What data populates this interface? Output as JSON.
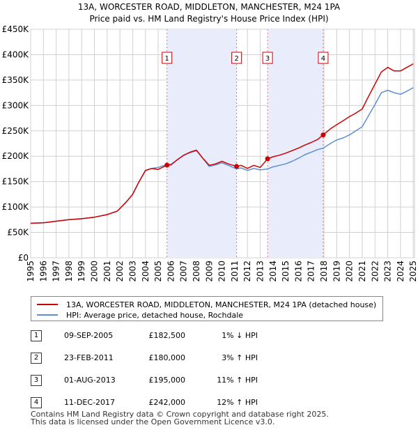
{
  "chart_data": {
    "type": "line",
    "title": "13A, WORCESTER ROAD, MIDDLETON, MANCHESTER, M24 1PA",
    "subtitle": "Price paid vs. HM Land Registry's House Price Index (HPI)",
    "y_tick_labels": [
      "£0",
      "£50K",
      "£100K",
      "£150K",
      "£200K",
      "£250K",
      "£300K",
      "£350K",
      "£400K",
      "£450K"
    ],
    "y_ticks": [
      0,
      50000,
      100000,
      150000,
      200000,
      250000,
      300000,
      350000,
      400000,
      450000
    ],
    "ylim": [
      0,
      450000
    ],
    "x_ticks": [
      "1995",
      "1996",
      "1997",
      "1998",
      "1999",
      "2000",
      "2001",
      "2002",
      "2003",
      "2004",
      "2005",
      "2006",
      "2007",
      "2008",
      "2009",
      "2010",
      "2011",
      "2012",
      "2013",
      "2014",
      "2015",
      "2016",
      "2017",
      "2018",
      "2019",
      "2020",
      "2021",
      "2022",
      "2023",
      "2024",
      "2025"
    ],
    "xlim": [
      1995.0,
      2025.1
    ],
    "grid": true,
    "series": [
      {
        "name": "13A, WORCESTER ROAD, MIDDLETON, MANCHESTER, M24 1PA (detached house)",
        "color": "#cc0000",
        "x": [
          1995.0,
          1996.0,
          1997.0,
          1998.0,
          1999.0,
          2000.0,
          2001.0,
          2001.8,
          2002.5,
          2003.0,
          2003.5,
          2004.0,
          2004.5,
          2005.0,
          2005.69,
          2006.0,
          2006.5,
          2007.0,
          2007.5,
          2008.0,
          2008.5,
          2009.0,
          2009.5,
          2010.0,
          2010.5,
          2011.15,
          2011.5,
          2012.0,
          2012.5,
          2013.0,
          2013.58,
          2014.0,
          2014.5,
          2015.0,
          2015.5,
          2016.0,
          2016.5,
          2017.0,
          2017.5,
          2017.94,
          2018.5,
          2019.0,
          2019.5,
          2020.0,
          2020.5,
          2021.0,
          2021.5,
          2022.0,
          2022.5,
          2023.0,
          2023.5,
          2024.0,
          2024.5,
          2025.0
        ],
        "values": [
          68000,
          69000,
          72000,
          75000,
          77000,
          80000,
          85000,
          92000,
          110000,
          125000,
          150000,
          172000,
          176000,
          174000,
          182500,
          183000,
          193000,
          202000,
          208000,
          212000,
          196000,
          182000,
          185000,
          190000,
          185000,
          180000,
          182000,
          176000,
          182000,
          178000,
          195000,
          199000,
          202000,
          206000,
          211000,
          216000,
          222000,
          227000,
          233000,
          242000,
          254000,
          262000,
          270000,
          278000,
          285000,
          293000,
          318000,
          342000,
          366000,
          375000,
          368000,
          368000,
          375000,
          382000
        ]
      },
      {
        "name": "HPI: Average price, detached house, Rochdale",
        "color": "#5b8fd0",
        "x": [
          1995.0,
          1996.0,
          1997.0,
          1998.0,
          1999.0,
          2000.0,
          2001.0,
          2001.8,
          2002.5,
          2003.0,
          2003.5,
          2004.0,
          2004.5,
          2005.0,
          2005.69,
          2006.0,
          2006.5,
          2007.0,
          2007.5,
          2008.0,
          2008.5,
          2009.0,
          2009.5,
          2010.0,
          2010.5,
          2011.15,
          2011.5,
          2012.0,
          2012.5,
          2013.0,
          2013.58,
          2014.0,
          2014.5,
          2015.0,
          2015.5,
          2016.0,
          2016.5,
          2017.0,
          2017.5,
          2017.94,
          2018.5,
          2019.0,
          2019.5,
          2020.0,
          2020.5,
          2021.0,
          2021.5,
          2022.0,
          2022.5,
          2023.0,
          2023.5,
          2024.0,
          2024.5,
          2025.0
        ],
        "values": [
          68000,
          69000,
          72000,
          75000,
          77000,
          80000,
          85000,
          92000,
          110000,
          125000,
          150000,
          172000,
          176000,
          178000,
          184000,
          184000,
          193000,
          202000,
          207000,
          211000,
          196000,
          180000,
          183000,
          187000,
          182000,
          175000,
          177000,
          172000,
          176000,
          173000,
          175000,
          179000,
          182000,
          185000,
          190000,
          196000,
          203000,
          208000,
          213000,
          216000,
          225000,
          232000,
          236000,
          242000,
          250000,
          258000,
          280000,
          302000,
          325000,
          330000,
          325000,
          322000,
          328000,
          335000
        ]
      }
    ],
    "sales": [
      {
        "n": "1",
        "x": 2005.69,
        "value": 182500
      },
      {
        "n": "2",
        "x": 2011.15,
        "value": 180000
      },
      {
        "n": "3",
        "x": 2013.58,
        "value": 195000
      },
      {
        "n": "4",
        "x": 2017.94,
        "value": 242000
      }
    ],
    "shaded_spans": [
      [
        2005.69,
        2011.15
      ],
      [
        2013.58,
        2017.94
      ]
    ]
  },
  "legend": {
    "property_label": "13A, WORCESTER ROAD, MIDDLETON, MANCHESTER, M24 1PA (detached house)",
    "hpi_label": "HPI: Average price, detached house, Rochdale",
    "property_color": "#cc0000",
    "hpi_color": "#5b8fd0"
  },
  "sales_table": [
    {
      "n": "1",
      "date": "09-SEP-2005",
      "price": "£182,500",
      "hpi": "1% ↓ HPI"
    },
    {
      "n": "2",
      "date": "23-FEB-2011",
      "price": "£180,000",
      "hpi": "3% ↑ HPI"
    },
    {
      "n": "3",
      "date": "01-AUG-2013",
      "price": "£195,000",
      "hpi": "11% ↑ HPI"
    },
    {
      "n": "4",
      "date": "11-DEC-2017",
      "price": "£242,000",
      "hpi": "12% ↑ HPI"
    }
  ],
  "footer": {
    "line1": "Contains HM Land Registry data © Crown copyright and database right 2025.",
    "line2": "This data is licensed under the Open Government Licence v3.0."
  }
}
